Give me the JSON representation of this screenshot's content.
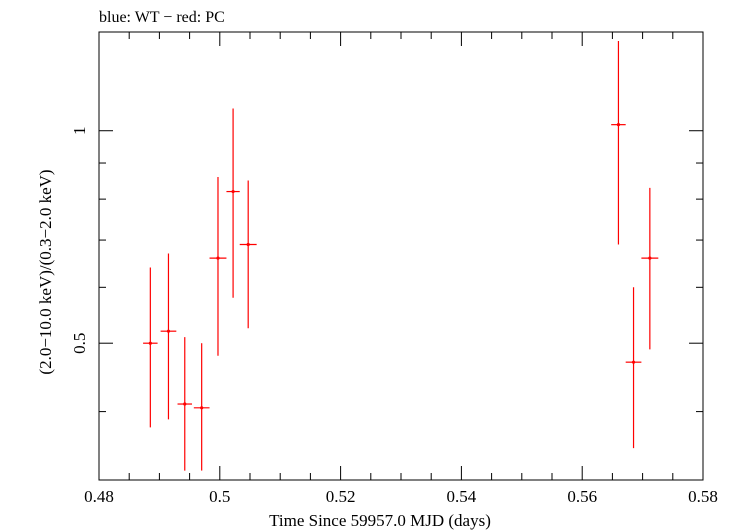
{
  "chart_data": {
    "type": "scatter",
    "title": "blue: WT − red: PC",
    "xlabel": "Time Since 59957.0 MJD (days)",
    "ylabel": "(2.0−10.0 keV)/(0.3−2.0 keV)",
    "xlim": [
      0.48,
      0.58
    ],
    "ylim": [
      0.32,
      1.38
    ],
    "yscale": "log",
    "grid": false,
    "x_ticks": [
      0.48,
      0.5,
      0.52,
      0.54,
      0.56,
      0.58
    ],
    "x_tick_labels": [
      "0.48",
      "0.5",
      "0.52",
      "0.54",
      "0.56",
      "0.58"
    ],
    "y_ticks": [
      0.5,
      1
    ],
    "y_tick_labels": [
      "0.5",
      "1"
    ],
    "series": [
      {
        "color": "#ff0000",
        "points": [
          {
            "x": 0.4885,
            "xerr": 0.0012,
            "y": 0.5,
            "ylo": 0.38,
            "yhi": 0.64
          },
          {
            "x": 0.4915,
            "xerr": 0.0013,
            "y": 0.52,
            "ylo": 0.39,
            "yhi": 0.67
          },
          {
            "x": 0.4942,
            "xerr": 0.0012,
            "y": 0.41,
            "ylo": 0.33,
            "yhi": 0.51
          },
          {
            "x": 0.497,
            "xerr": 0.0013,
            "y": 0.405,
            "ylo": 0.33,
            "yhi": 0.5
          },
          {
            "x": 0.4997,
            "xerr": 0.0014,
            "y": 0.66,
            "ylo": 0.48,
            "yhi": 0.86
          },
          {
            "x": 0.5022,
            "xerr": 0.0011,
            "y": 0.82,
            "ylo": 0.58,
            "yhi": 1.075
          },
          {
            "x": 0.5047,
            "xerr": 0.0014,
            "y": 0.69,
            "ylo": 0.525,
            "yhi": 0.85
          },
          {
            "x": 0.566,
            "xerr": 0.0012,
            "y": 1.02,
            "ylo": 0.69,
            "yhi": 1.34
          },
          {
            "x": 0.5685,
            "xerr": 0.0013,
            "y": 0.47,
            "ylo": 0.355,
            "yhi": 0.6
          },
          {
            "x": 0.5712,
            "xerr": 0.0014,
            "y": 0.66,
            "ylo": 0.49,
            "yhi": 0.83
          }
        ]
      }
    ]
  }
}
